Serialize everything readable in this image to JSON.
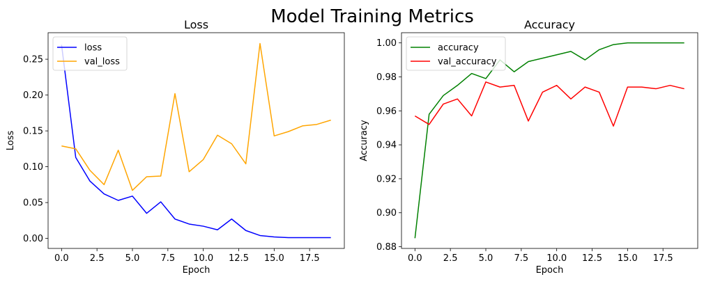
{
  "figure_title": "Model Training Metrics",
  "chart_data": [
    {
      "type": "line",
      "title": "Loss",
      "xlabel": "Epoch",
      "ylabel": "Loss",
      "xlim": [
        -0.95,
        19.95
      ],
      "ylim": [
        -0.014,
        0.287
      ],
      "xticks": [
        0,
        2.5,
        5,
        7.5,
        10,
        12.5,
        15,
        17.5
      ],
      "xtick_labels": [
        "0.0",
        "2.5",
        "5.0",
        "7.5",
        "10.0",
        "12.5",
        "15.0",
        "17.5"
      ],
      "yticks": [
        0,
        0.05,
        0.1,
        0.15,
        0.2,
        0.25
      ],
      "ytick_labels": [
        "0.00",
        "0.05",
        "0.10",
        "0.15",
        "0.20",
        "0.25"
      ],
      "legend_position": "upper-left",
      "x": [
        0,
        1,
        2,
        3,
        4,
        5,
        6,
        7,
        8,
        9,
        10,
        11,
        12,
        13,
        14,
        15,
        16,
        17,
        18,
        19
      ],
      "series": [
        {
          "name": "loss",
          "color": "#0000ff",
          "values": [
            0.27,
            0.113,
            0.08,
            0.062,
            0.053,
            0.059,
            0.035,
            0.051,
            0.027,
            0.02,
            0.017,
            0.012,
            0.027,
            0.011,
            0.004,
            0.002,
            0.001,
            0.001,
            0.001,
            0.001
          ]
        },
        {
          "name": "val_loss",
          "color": "#ffa500",
          "values": [
            0.129,
            0.125,
            0.095,
            0.075,
            0.123,
            0.067,
            0.086,
            0.087,
            0.202,
            0.093,
            0.11,
            0.144,
            0.132,
            0.104,
            0.272,
            0.143,
            0.149,
            0.157,
            0.159,
            0.165
          ]
        }
      ]
    },
    {
      "type": "line",
      "title": "Accuracy",
      "xlabel": "Epoch",
      "ylabel": "Accuracy",
      "xlim": [
        -0.95,
        19.95
      ],
      "ylim": [
        0.879,
        1.006
      ],
      "xticks": [
        0,
        2.5,
        5,
        7.5,
        10,
        12.5,
        15,
        17.5
      ],
      "xtick_labels": [
        "0.0",
        "2.5",
        "5.0",
        "7.5",
        "10.0",
        "12.5",
        "15.0",
        "17.5"
      ],
      "yticks": [
        0.88,
        0.9,
        0.92,
        0.94,
        0.96,
        0.98,
        1.0
      ],
      "ytick_labels": [
        "0.88",
        "0.90",
        "0.92",
        "0.94",
        "0.96",
        "0.98",
        "1.00"
      ],
      "legend_position": "upper-left",
      "x": [
        0,
        1,
        2,
        3,
        4,
        5,
        6,
        7,
        8,
        9,
        10,
        11,
        12,
        13,
        14,
        15,
        16,
        17,
        18,
        19
      ],
      "series": [
        {
          "name": "accuracy",
          "color": "#008000",
          "values": [
            0.885,
            0.958,
            0.969,
            0.975,
            0.982,
            0.979,
            0.99,
            0.983,
            0.989,
            0.991,
            0.993,
            0.995,
            0.99,
            0.996,
            0.999,
            1.0,
            1.0,
            1.0,
            1.0,
            1.0
          ]
        },
        {
          "name": "val_accuracy",
          "color": "#ff0000",
          "values": [
            0.957,
            0.952,
            0.964,
            0.967,
            0.957,
            0.977,
            0.974,
            0.975,
            0.954,
            0.971,
            0.975,
            0.967,
            0.974,
            0.971,
            0.951,
            0.974,
            0.974,
            0.973,
            0.975,
            0.973
          ]
        }
      ]
    }
  ]
}
